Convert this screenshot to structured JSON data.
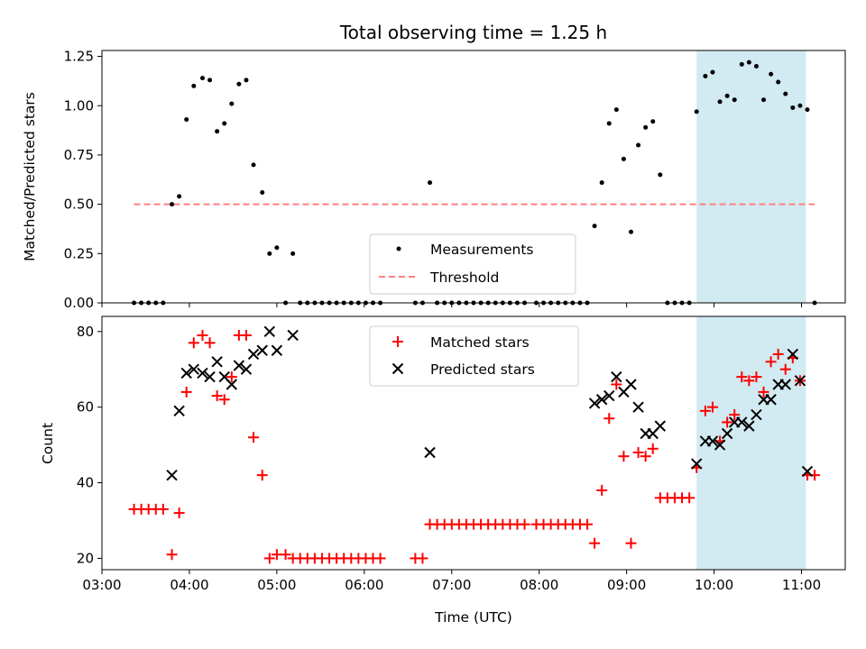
{
  "chart_data": [
    {
      "type": "scatter",
      "title": "Total observing time = 1.25 h",
      "xlabel": "",
      "ylabel": "Matched/Predicted stars",
      "xlim": [
        "03:00",
        "11:30"
      ],
      "ylim": [
        0,
        1.28
      ],
      "yticks": [
        "0.00",
        "0.25",
        "0.50",
        "0.75",
        "1.00",
        "1.25"
      ],
      "highlight_span": [
        "09:48",
        "11:03"
      ],
      "highlight_color": "#add8e6",
      "series": [
        {
          "name": "Measurements",
          "color": "#000000",
          "marker": "dot",
          "points": [
            [
              "03:22",
              0
            ],
            [
              "03:27",
              0
            ],
            [
              "03:32",
              0
            ],
            [
              "03:37",
              0
            ],
            [
              "03:42",
              0
            ],
            [
              "03:48",
              0.5
            ],
            [
              "03:53",
              0.54
            ],
            [
              "03:58",
              0.93
            ],
            [
              "04:03",
              1.1
            ],
            [
              "04:09",
              1.14
            ],
            [
              "04:14",
              1.13
            ],
            [
              "04:19",
              0.87
            ],
            [
              "04:24",
              0.91
            ],
            [
              "04:29",
              1.01
            ],
            [
              "04:34",
              1.11
            ],
            [
              "04:39",
              1.13
            ],
            [
              "04:44",
              0.7
            ],
            [
              "04:50",
              0.56
            ],
            [
              "04:55",
              0.25
            ],
            [
              "05:00",
              0.28
            ],
            [
              "05:06",
              0
            ],
            [
              "05:11",
              0.25
            ],
            [
              "05:16",
              0
            ],
            [
              "05:21",
              0
            ],
            [
              "05:26",
              0
            ],
            [
              "05:31",
              0
            ],
            [
              "05:36",
              0
            ],
            [
              "05:41",
              0
            ],
            [
              "05:46",
              0
            ],
            [
              "05:51",
              0
            ],
            [
              "05:56",
              0
            ],
            [
              "06:01",
              0
            ],
            [
              "06:06",
              0
            ],
            [
              "06:11",
              0
            ],
            [
              "06:35",
              0
            ],
            [
              "06:40",
              0
            ],
            [
              "06:45",
              0.61
            ],
            [
              "06:50",
              0
            ],
            [
              "06:55",
              0
            ],
            [
              "07:00",
              0
            ],
            [
              "07:05",
              0
            ],
            [
              "07:10",
              0
            ],
            [
              "07:15",
              0
            ],
            [
              "07:20",
              0
            ],
            [
              "07:25",
              0
            ],
            [
              "07:30",
              0
            ],
            [
              "07:35",
              0
            ],
            [
              "07:40",
              0
            ],
            [
              "07:45",
              0
            ],
            [
              "07:50",
              0
            ],
            [
              "07:58",
              0
            ],
            [
              "08:03",
              0
            ],
            [
              "08:08",
              0
            ],
            [
              "08:13",
              0
            ],
            [
              "08:18",
              0
            ],
            [
              "08:23",
              0
            ],
            [
              "08:28",
              0
            ],
            [
              "08:33",
              0
            ],
            [
              "08:38",
              0.39
            ],
            [
              "08:43",
              0.61
            ],
            [
              "08:48",
              0.91
            ],
            [
              "08:53",
              0.98
            ],
            [
              "08:58",
              0.73
            ],
            [
              "09:03",
              0.36
            ],
            [
              "09:08",
              0.8
            ],
            [
              "09:13",
              0.89
            ],
            [
              "09:18",
              0.92
            ],
            [
              "09:23",
              0.65
            ],
            [
              "09:28",
              0
            ],
            [
              "09:33",
              0
            ],
            [
              "09:38",
              0
            ],
            [
              "09:43",
              0
            ],
            [
              "09:48",
              0.97
            ],
            [
              "09:54",
              1.15
            ],
            [
              "09:59",
              1.17
            ],
            [
              "10:04",
              1.02
            ],
            [
              "10:09",
              1.05
            ],
            [
              "10:14",
              1.03
            ],
            [
              "10:19",
              1.21
            ],
            [
              "10:24",
              1.22
            ],
            [
              "10:29",
              1.2
            ],
            [
              "10:34",
              1.03
            ],
            [
              "10:39",
              1.16
            ],
            [
              "10:44",
              1.12
            ],
            [
              "10:49",
              1.06
            ],
            [
              "10:54",
              0.99
            ],
            [
              "10:59",
              1.0
            ],
            [
              "11:04",
              0.98
            ],
            [
              "11:09",
              0
            ]
          ]
        },
        {
          "name": "Threshold",
          "color": "#ff7f7f",
          "style": "dashed",
          "points": [
            [
              "03:22",
              0.5
            ],
            [
              "11:09",
              0.5
            ]
          ]
        }
      ],
      "legend": {
        "position": "lower center",
        "entries": [
          "Measurements",
          "Threshold"
        ]
      }
    },
    {
      "type": "scatter",
      "title": "",
      "xlabel": "Time (UTC)",
      "ylabel": "Count",
      "xlim": [
        "03:00",
        "11:30"
      ],
      "ylim": [
        17,
        84
      ],
      "yticks": [
        "20",
        "40",
        "60",
        "80"
      ],
      "xticks": [
        "03:00",
        "04:00",
        "05:00",
        "06:00",
        "07:00",
        "08:00",
        "09:00",
        "10:00",
        "11:00"
      ],
      "highlight_span": [
        "09:48",
        "11:03"
      ],
      "highlight_color": "#add8e6",
      "series": [
        {
          "name": "Matched stars",
          "color": "#ff0000",
          "marker": "plus",
          "points": [
            [
              "03:22",
              33
            ],
            [
              "03:27",
              33
            ],
            [
              "03:32",
              33
            ],
            [
              "03:37",
              33
            ],
            [
              "03:42",
              33
            ],
            [
              "03:48",
              21
            ],
            [
              "03:53",
              32
            ],
            [
              "03:58",
              64
            ],
            [
              "04:03",
              77
            ],
            [
              "04:09",
              79
            ],
            [
              "04:14",
              77
            ],
            [
              "04:19",
              63
            ],
            [
              "04:24",
              62
            ],
            [
              "04:29",
              68
            ],
            [
              "04:34",
              79
            ],
            [
              "04:39",
              79
            ],
            [
              "04:44",
              52
            ],
            [
              "04:50",
              42
            ],
            [
              "04:55",
              20
            ],
            [
              "05:00",
              21
            ],
            [
              "05:06",
              21
            ],
            [
              "05:11",
              20
            ],
            [
              "05:16",
              20
            ],
            [
              "05:21",
              20
            ],
            [
              "05:26",
              20
            ],
            [
              "05:31",
              20
            ],
            [
              "05:36",
              20
            ],
            [
              "05:41",
              20
            ],
            [
              "05:46",
              20
            ],
            [
              "05:51",
              20
            ],
            [
              "05:56",
              20
            ],
            [
              "06:01",
              20
            ],
            [
              "06:06",
              20
            ],
            [
              "06:11",
              20
            ],
            [
              "06:35",
              20
            ],
            [
              "06:40",
              20
            ],
            [
              "06:45",
              29
            ],
            [
              "06:50",
              29
            ],
            [
              "06:55",
              29
            ],
            [
              "07:00",
              29
            ],
            [
              "07:05",
              29
            ],
            [
              "07:10",
              29
            ],
            [
              "07:15",
              29
            ],
            [
              "07:20",
              29
            ],
            [
              "07:25",
              29
            ],
            [
              "07:30",
              29
            ],
            [
              "07:35",
              29
            ],
            [
              "07:40",
              29
            ],
            [
              "07:45",
              29
            ],
            [
              "07:50",
              29
            ],
            [
              "07:58",
              29
            ],
            [
              "08:03",
              29
            ],
            [
              "08:08",
              29
            ],
            [
              "08:13",
              29
            ],
            [
              "08:18",
              29
            ],
            [
              "08:23",
              29
            ],
            [
              "08:28",
              29
            ],
            [
              "08:33",
              29
            ],
            [
              "08:38",
              24
            ],
            [
              "08:43",
              38
            ],
            [
              "08:48",
              57
            ],
            [
              "08:53",
              66
            ],
            [
              "08:58",
              47
            ],
            [
              "09:03",
              24
            ],
            [
              "09:08",
              48
            ],
            [
              "09:13",
              47
            ],
            [
              "09:18",
              49
            ],
            [
              "09:23",
              36
            ],
            [
              "09:28",
              36
            ],
            [
              "09:33",
              36
            ],
            [
              "09:38",
              36
            ],
            [
              "09:43",
              36
            ],
            [
              "09:48",
              44
            ],
            [
              "09:54",
              59
            ],
            [
              "09:59",
              60
            ],
            [
              "10:04",
              51
            ],
            [
              "10:09",
              56
            ],
            [
              "10:14",
              58
            ],
            [
              "10:19",
              68
            ],
            [
              "10:24",
              67
            ],
            [
              "10:29",
              68
            ],
            [
              "10:34",
              64
            ],
            [
              "10:39",
              72
            ],
            [
              "10:44",
              74
            ],
            [
              "10:49",
              70
            ],
            [
              "10:54",
              73
            ],
            [
              "10:59",
              67
            ],
            [
              "11:04",
              42
            ],
            [
              "11:09",
              42
            ]
          ]
        },
        {
          "name": "Predicted stars",
          "color": "#000000",
          "marker": "x",
          "points": [
            [
              "03:48",
              42
            ],
            [
              "03:53",
              59
            ],
            [
              "03:58",
              69
            ],
            [
              "04:03",
              70
            ],
            [
              "04:09",
              69
            ],
            [
              "04:14",
              68
            ],
            [
              "04:19",
              72
            ],
            [
              "04:24",
              68
            ],
            [
              "04:29",
              66
            ],
            [
              "04:34",
              71
            ],
            [
              "04:39",
              70
            ],
            [
              "04:44",
              74
            ],
            [
              "04:50",
              75
            ],
            [
              "04:55",
              80
            ],
            [
              "05:00",
              75
            ],
            [
              "05:11",
              79
            ],
            [
              "06:45",
              48
            ],
            [
              "08:38",
              61
            ],
            [
              "08:43",
              62
            ],
            [
              "08:48",
              63
            ],
            [
              "08:53",
              68
            ],
            [
              "08:58",
              64
            ],
            [
              "09:03",
              66
            ],
            [
              "09:08",
              60
            ],
            [
              "09:13",
              53
            ],
            [
              "09:18",
              53
            ],
            [
              "09:23",
              55
            ],
            [
              "09:48",
              45
            ],
            [
              "09:54",
              51
            ],
            [
              "09:59",
              51
            ],
            [
              "10:04",
              50
            ],
            [
              "10:09",
              53
            ],
            [
              "10:14",
              56
            ],
            [
              "10:19",
              56
            ],
            [
              "10:24",
              55
            ],
            [
              "10:29",
              58
            ],
            [
              "10:34",
              62
            ],
            [
              "10:39",
              62
            ],
            [
              "10:44",
              66
            ],
            [
              "10:49",
              66
            ],
            [
              "10:54",
              74
            ],
            [
              "10:59",
              67
            ],
            [
              "11:04",
              43
            ]
          ]
        }
      ],
      "legend": {
        "position": "upper center",
        "entries": [
          "Matched stars",
          "Predicted stars"
        ]
      }
    }
  ]
}
